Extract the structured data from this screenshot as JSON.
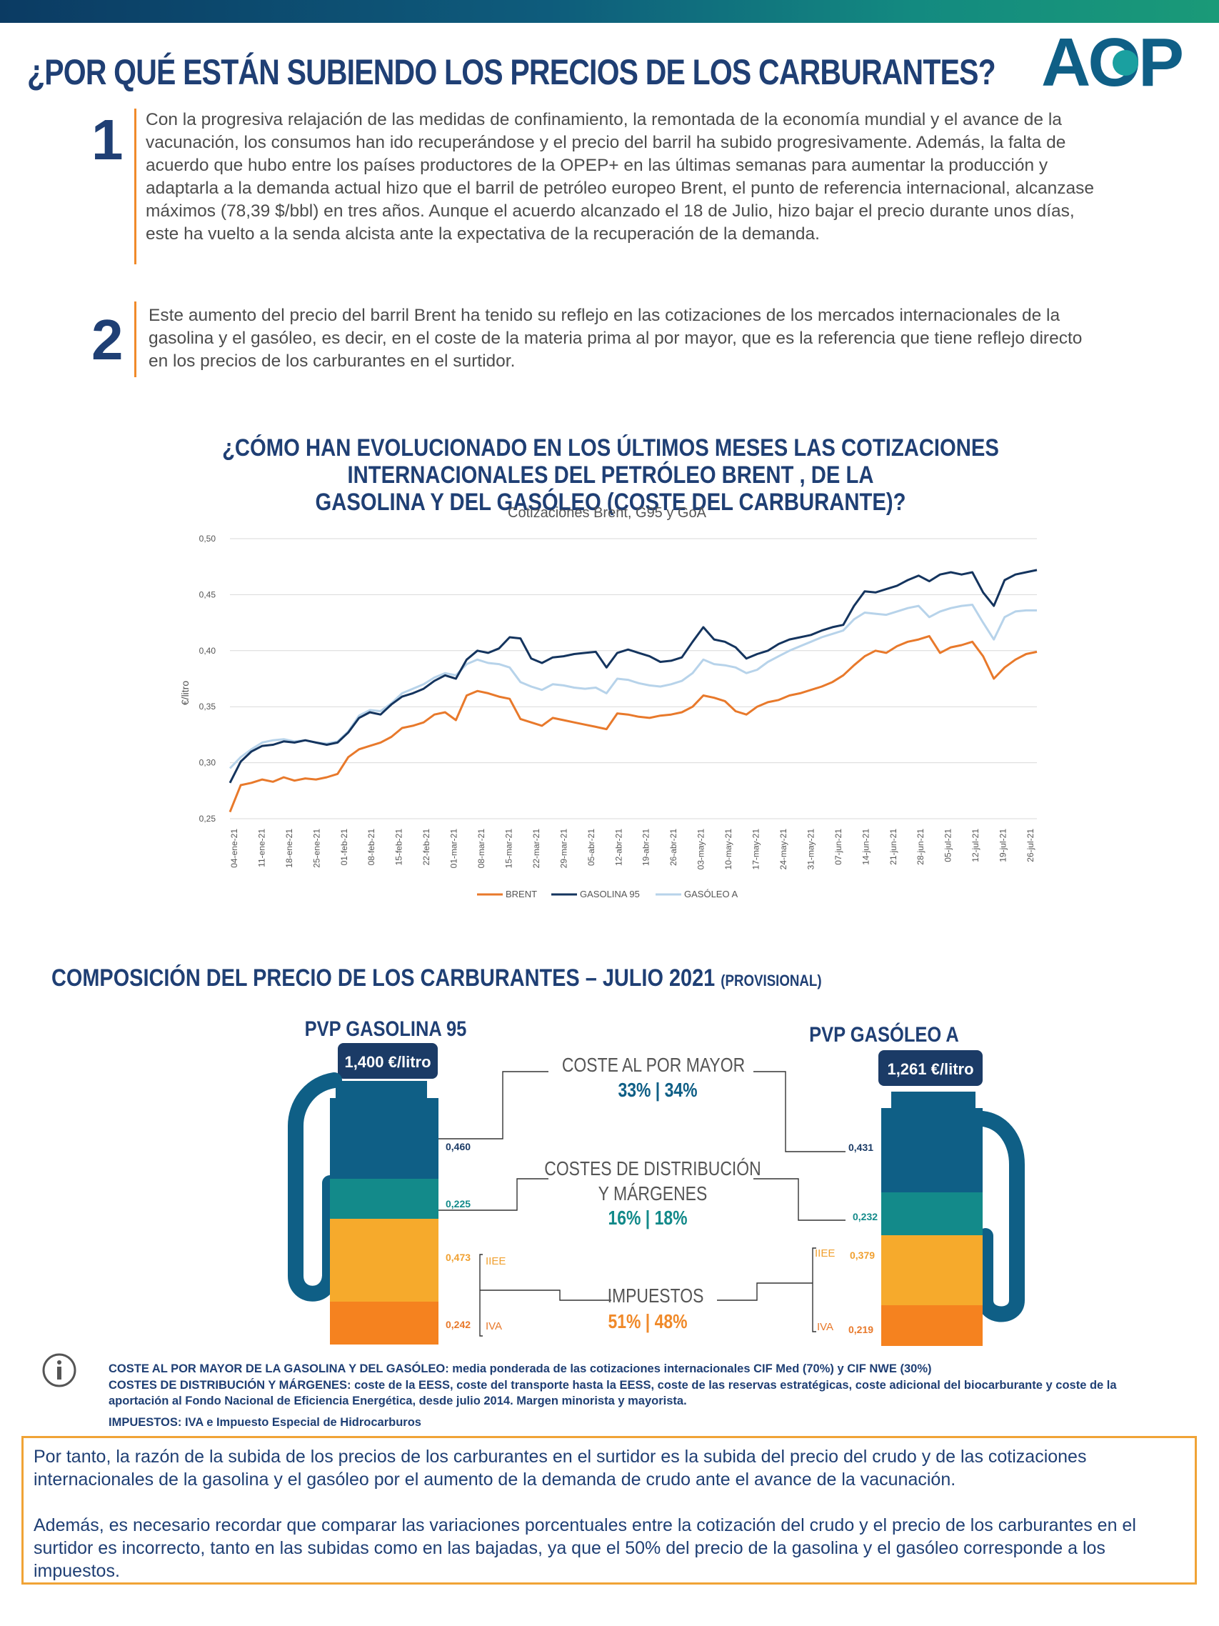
{
  "header": {
    "title": "¿POR QUÉ ESTÁN SUBIENDO LOS PRECIOS DE LOS CARBURANTES?",
    "logo_text": "AOP"
  },
  "points": [
    {
      "number": "1",
      "text": "Con la progresiva relajación de las medidas de confinamiento, la remontada de la economía mundial y el avance de la vacunación, los consumos han ido recuperándose y el precio del barril ha subido progresivamente. Además, la falta de acuerdo que hubo entre los países productores de la OPEP+ en las últimas semanas para aumentar la producción y adaptarla a la demanda actual hizo que el barril de petróleo europeo Brent, el punto de referencia internacional, alcanzase máximos (78,39 $/bbl) en tres años. Aunque el acuerdo alcanzado el 18 de Julio, hizo bajar el precio durante unos días, este ha vuelto a la senda alcista ante la expectativa de la recuperación de la demanda."
    },
    {
      "number": "2",
      "text": "Este aumento del precio del barril Brent ha tenido su reflejo en las cotizaciones de los mercados internacionales de la gasolina y el gasóleo, es decir, en el coste de la materia prima al por mayor, que es la referencia que tiene reflejo directo en los precios de los carburantes en el surtidor."
    }
  ],
  "chart_section": {
    "title_line1": "¿CÓMO HAN EVOLUCIONADO EN LOS ÚLTIMOS MESES LAS COTIZACIONES INTERNACIONALES DEL PETRÓLEO BRENT , DE LA",
    "title_line2": "GASOLINA Y DEL GASÓLEO (COSTE DEL CARBURANTE)?"
  },
  "chart_data": {
    "type": "line",
    "title": "Cotizaciones Brent, G95 y GoA",
    "ylabel": "€/litro",
    "xlabel": "",
    "ylim": [
      0.25,
      0.5
    ],
    "y_ticks": [
      "0,50",
      "0,45",
      "0,40",
      "0,35",
      "0,30",
      "0,25"
    ],
    "y_tick_values": [
      0.5,
      0.45,
      0.4,
      0.35,
      0.3,
      0.25
    ],
    "grid": true,
    "legend_position": "bottom",
    "x_ticks": [
      "04-ene-21",
      "11-ene-21",
      "18-ene-21",
      "25-ene-21",
      "01-feb-21",
      "08-feb-21",
      "15-feb-21",
      "22-feb-21",
      "01-mar-21",
      "08-mar-21",
      "15-mar-21",
      "22-mar-21",
      "29-mar-21",
      "05-abr-21",
      "12-abr-21",
      "19-abr-21",
      "26-abr-21",
      "03-may-21",
      "10-may-21",
      "17-may-21",
      "24-may-21",
      "31-may-21",
      "07-jun-21",
      "14-jun-21",
      "21-jun-21",
      "28-jun-21",
      "05-jul-21",
      "12-jul-21",
      "19-jul-21",
      "26-jul-21"
    ],
    "series": [
      {
        "name": "BRENT",
        "color": "#e8792b",
        "values": [
          0.256,
          0.28,
          0.282,
          0.285,
          0.283,
          0.287,
          0.284,
          0.286,
          0.285,
          0.287,
          0.29,
          0.305,
          0.312,
          0.315,
          0.318,
          0.323,
          0.331,
          0.333,
          0.336,
          0.343,
          0.345,
          0.338,
          0.36,
          0.364,
          0.362,
          0.359,
          0.357,
          0.339,
          0.336,
          0.333,
          0.34,
          0.338,
          0.336,
          0.334,
          0.332,
          0.33,
          0.344,
          0.343,
          0.341,
          0.34,
          0.342,
          0.343,
          0.345,
          0.35,
          0.36,
          0.358,
          0.355,
          0.346,
          0.343,
          0.35,
          0.354,
          0.356,
          0.36,
          0.362,
          0.365,
          0.368,
          0.372,
          0.378,
          0.387,
          0.395,
          0.4,
          0.398,
          0.404,
          0.408,
          0.41,
          0.413,
          0.398,
          0.403,
          0.405,
          0.408,
          0.395,
          0.375,
          0.385,
          0.392,
          0.397,
          0.399
        ]
      },
      {
        "name": "GASOLINA 95",
        "color": "#14345e",
        "values": [
          0.282,
          0.301,
          0.31,
          0.315,
          0.316,
          0.319,
          0.318,
          0.32,
          0.318,
          0.316,
          0.318,
          0.327,
          0.34,
          0.345,
          0.343,
          0.352,
          0.359,
          0.362,
          0.366,
          0.373,
          0.378,
          0.375,
          0.392,
          0.4,
          0.398,
          0.402,
          0.412,
          0.411,
          0.393,
          0.389,
          0.394,
          0.395,
          0.397,
          0.398,
          0.399,
          0.385,
          0.398,
          0.401,
          0.398,
          0.395,
          0.39,
          0.391,
          0.394,
          0.408,
          0.421,
          0.41,
          0.408,
          0.403,
          0.393,
          0.397,
          0.4,
          0.406,
          0.41,
          0.412,
          0.414,
          0.418,
          0.421,
          0.423,
          0.44,
          0.453,
          0.452,
          0.455,
          0.458,
          0.463,
          0.467,
          0.462,
          0.468,
          0.47,
          0.468,
          0.47,
          0.452,
          0.44,
          0.463,
          0.468,
          0.47,
          0.472
        ]
      },
      {
        "name": "GASÓLEO A",
        "color": "#b7d3ea",
        "values": [
          0.295,
          0.305,
          0.312,
          0.318,
          0.32,
          0.321,
          0.319,
          0.32,
          0.318,
          0.317,
          0.319,
          0.328,
          0.342,
          0.347,
          0.346,
          0.353,
          0.362,
          0.366,
          0.37,
          0.376,
          0.38,
          0.378,
          0.388,
          0.392,
          0.389,
          0.388,
          0.385,
          0.372,
          0.368,
          0.365,
          0.37,
          0.369,
          0.367,
          0.366,
          0.367,
          0.362,
          0.375,
          0.374,
          0.371,
          0.369,
          0.368,
          0.37,
          0.373,
          0.38,
          0.392,
          0.388,
          0.387,
          0.385,
          0.38,
          0.383,
          0.39,
          0.395,
          0.4,
          0.404,
          0.408,
          0.412,
          0.415,
          0.418,
          0.428,
          0.434,
          0.433,
          0.432,
          0.435,
          0.438,
          0.44,
          0.43,
          0.435,
          0.438,
          0.44,
          0.441,
          0.425,
          0.41,
          0.43,
          0.435,
          0.436,
          0.436
        ]
      }
    ]
  },
  "composition": {
    "title": "COMPOSICIÓN DEL PRECIO DE LOS CARBURANTES – JULIO 2021",
    "title_small": "(PROVISIONAL)",
    "gasolina": {
      "label": "PVP GASOLINA 95",
      "price": "1,400 €/litro",
      "coste": "0,460",
      "distribucion": "0,225",
      "iiee": "0,473",
      "iva": "0,242"
    },
    "gasoleo": {
      "label": "PVP GASÓLEO A",
      "price": "1,261 €/litro",
      "coste": "0,431",
      "distribucion": "0,232",
      "iiee": "0,379",
      "iva": "0,219"
    },
    "categories": {
      "coste_label": "COSTE AL POR MAYOR",
      "coste_pct": "33% | 34%",
      "dist_label_1": "COSTES DE DISTRIBUCIÓN",
      "dist_label_2": "Y MÁRGENES",
      "dist_pct": "16% | 18%",
      "imp_label": "IMPUESTOS",
      "imp_pct": "51% | 48%",
      "iiee": "IIEE",
      "iva": "IVA"
    },
    "colors": {
      "coste": "#0f5f86",
      "distribucion": "#138a8a",
      "iiee": "#f6aa2c",
      "iva": "#f5821f",
      "pump": "#0f5f86"
    }
  },
  "notes": [
    "COSTE AL POR MAYOR DE LA GASOLINA Y DEL GASÓLEO: media ponderada de las cotizaciones internacionales CIF Med (70%) y CIF NWE (30%)",
    "COSTES DE DISTRIBUCIÓN Y MÁRGENES: coste de la EESS, coste del transporte hasta la EESS, coste de las reservas estratégicas, coste adicional del biocarburante y coste de la aportación al Fondo Nacional de Eficiencia Energética, desde julio 2014. Margen minorista y mayorista.",
    "IMPUESTOS: IVA e Impuesto Especial de Hidrocarburos"
  ],
  "conclusion": {
    "p1": "Por tanto, la razón de la subida de los precios de los carburantes en el surtidor es la subida del precio del crudo y de las cotizaciones internacionales de la gasolina y el gasóleo por el aumento de la demanda de crudo ante el avance de la vacunación.",
    "p2": "Además, es necesario recordar que comparar las variaciones porcentuales entre la cotización del crudo y el precio de los carburantes en el surtidor es incorrecto, tanto en las subidas como en las bajadas, ya que el 50% del precio de la gasolina y el gasóleo corresponde a los impuestos."
  }
}
